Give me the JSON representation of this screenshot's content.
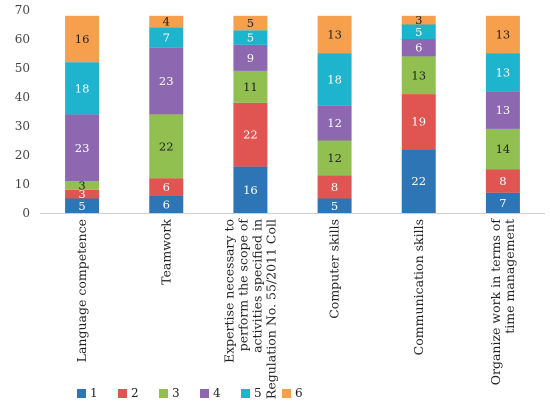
{
  "chart_data": {
    "type": "bar",
    "stacked": true,
    "categories": [
      [
        "Language competence"
      ],
      [
        "Teamwork"
      ],
      [
        "Expertise necessary to",
        "perform the scope of",
        "activities specified in",
        "Regulation No. 55/2011 Coll"
      ],
      [
        "Computer skills"
      ],
      [
        "Communication skills"
      ],
      [
        "Organize work in terms of",
        "time management"
      ]
    ],
    "series": [
      {
        "name": "1",
        "color": "#2E75B6",
        "values": [
          5,
          6,
          16,
          5,
          22,
          7
        ]
      },
      {
        "name": "2",
        "color": "#E05452",
        "values": [
          3,
          6,
          22,
          8,
          19,
          8
        ]
      },
      {
        "name": "3",
        "color": "#92C050",
        "values": [
          3,
          22,
          11,
          12,
          13,
          14
        ]
      },
      {
        "name": "4",
        "color": "#8D68B0",
        "values": [
          23,
          23,
          9,
          12,
          6,
          13
        ]
      },
      {
        "name": "5",
        "color": "#1FB4CE",
        "values": [
          18,
          7,
          5,
          18,
          5,
          13
        ]
      },
      {
        "name": "6",
        "color": "#F6A04D",
        "values": [
          16,
          4,
          5,
          13,
          3,
          13
        ]
      }
    ],
    "yticks": [
      0,
      10,
      20,
      30,
      40,
      50,
      60,
      70
    ],
    "ylim": [
      0,
      70
    ],
    "grid": false,
    "legend": "bottom-left",
    "label_colors": {
      "1": "#ffffff",
      "2": "#ffffff",
      "3": "#222222",
      "4": "#ffffff",
      "5": "#ffffff",
      "6": "#222222"
    }
  }
}
